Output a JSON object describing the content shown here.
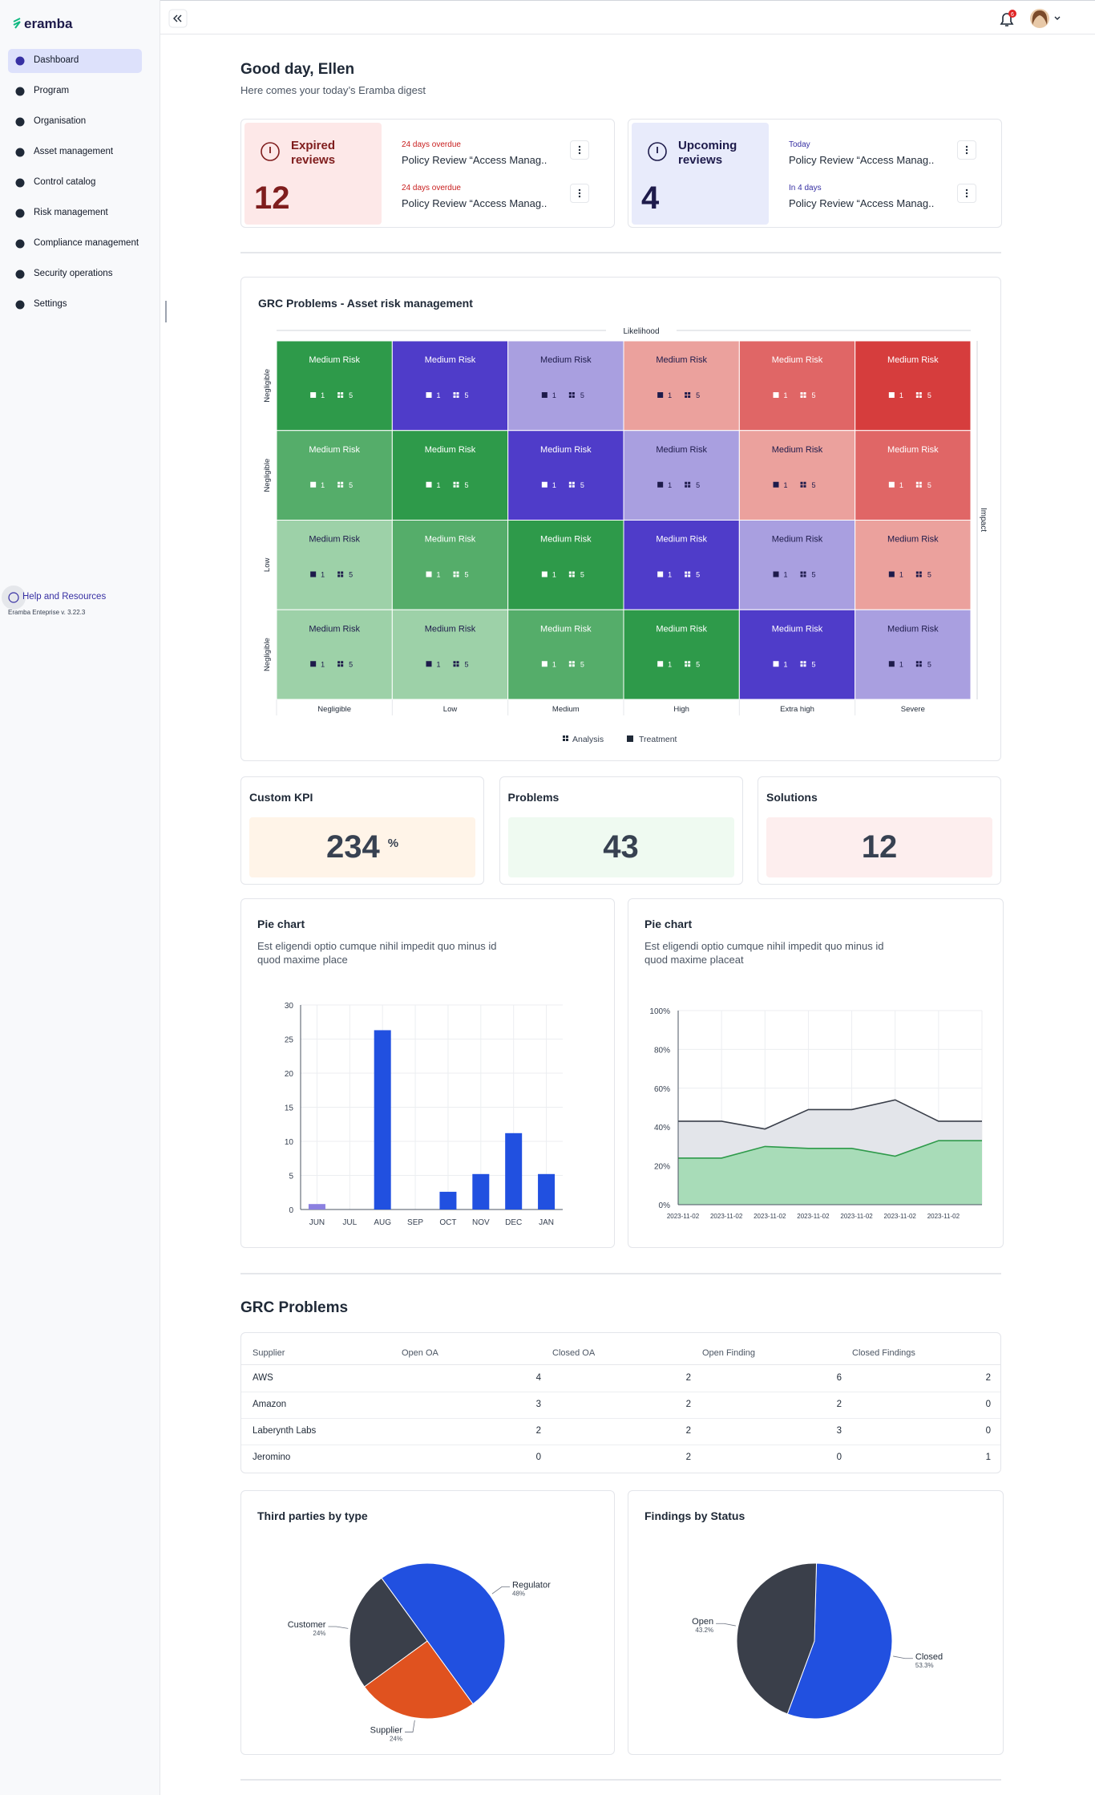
{
  "sidebar": {
    "logo": "eramba",
    "active": 0,
    "menu": [
      "Dashboard",
      "Program",
      "Organisation",
      "Asset management",
      "Control catalog",
      "Risk management",
      "Compliance management",
      "Security operations",
      "Settings"
    ],
    "help": "Help and Resources",
    "version": "Eramba Enteprise v. 3.22.3"
  },
  "topbar": {
    "notifications": "6"
  },
  "greeting": {
    "title": "Good day, Ellen",
    "subtitle": "Here comes your today’s Eramba digest"
  },
  "reviews": [
    {
      "title": "Expired reviews",
      "count": 12,
      "bg": "#fde8e8",
      "fg": "#7f1d1d",
      "status_color": "#c81e1e",
      "items": [
        {
          "status": "24 days overdue",
          "title": "Policy Review “Access Manag.."
        },
        {
          "status": "24 days overdue",
          "title": "Policy Review “Access Manag.."
        }
      ]
    },
    {
      "title": "Upcoming reviews",
      "count": 4,
      "bg": "#e8ebfb",
      "fg": "#1e1b4b",
      "status_color": "#3730a3",
      "items": [
        {
          "status": "Today",
          "title": "Policy Review “Access Manag.."
        },
        {
          "status": "In 4 days",
          "title": "Policy Review “Access Manag.."
        }
      ]
    }
  ],
  "risk_matrix": {
    "title": "GRC Problems - Asset risk management",
    "x_axis": "Likelihood",
    "y_axis": "Impact",
    "columns": [
      "Negligible",
      "Low",
      "Medium",
      "High",
      "Extra high",
      "Severe"
    ],
    "legend": [
      "Analysis",
      "Treatment"
    ],
    "rows": [
      {
        "label": "Negligible",
        "cells": [
          {
            "label": "Medium Risk",
            "color": "#2e9a4a",
            "treatment": 1,
            "analysis": 5
          },
          {
            "label": "Medium Risk",
            "color": "#4f3cc9",
            "treatment": 1,
            "analysis": 5
          },
          {
            "label": "Medium Risk",
            "color": "#a99fe0",
            "treatment": 1,
            "analysis": 5
          },
          {
            "label": "Medium Risk",
            "color": "#eba19d",
            "treatment": 1,
            "analysis": 5
          },
          {
            "label": "Medium Risk",
            "color": "#e06666",
            "treatment": 1,
            "analysis": 5
          },
          {
            "label": "Medium Risk",
            "color": "#d63d3d",
            "treatment": 1,
            "analysis": 5
          }
        ]
      },
      {
        "label": "Negligible",
        "cells": [
          {
            "label": "Medium Risk",
            "color": "#55ad6a",
            "treatment": 1,
            "analysis": 5
          },
          {
            "label": "Medium Risk",
            "color": "#2e9a4a",
            "treatment": 1,
            "analysis": 5
          },
          {
            "label": "Medium Risk",
            "color": "#4f3cc9",
            "treatment": 1,
            "analysis": 5
          },
          {
            "label": "Medium Risk",
            "color": "#a99fe0",
            "treatment": 1,
            "analysis": 5
          },
          {
            "label": "Medium Risk",
            "color": "#eba19d",
            "treatment": 1,
            "analysis": 5
          },
          {
            "label": "Medium Risk",
            "color": "#e06666",
            "treatment": 1,
            "analysis": 5
          }
        ]
      },
      {
        "label": "Low",
        "cells": [
          {
            "label": "Medium Risk",
            "color": "#9dd1a8",
            "treatment": 1,
            "analysis": 5
          },
          {
            "label": "Medium Risk",
            "color": "#55ad6a",
            "treatment": 1,
            "analysis": 5
          },
          {
            "label": "Medium Risk",
            "color": "#2e9a4a",
            "treatment": 1,
            "analysis": 5
          },
          {
            "label": "Medium Risk",
            "color": "#4f3cc9",
            "treatment": 1,
            "analysis": 5
          },
          {
            "label": "Medium Risk",
            "color": "#a99fe0",
            "treatment": 1,
            "analysis": 5
          },
          {
            "label": "Medium Risk",
            "color": "#eba19d",
            "treatment": 1,
            "analysis": 5
          }
        ]
      },
      {
        "label": "Negligible",
        "cells": [
          {
            "label": "Medium Risk",
            "color": "#9dd1a8",
            "treatment": 1,
            "analysis": 5
          },
          {
            "label": "Medium Risk",
            "color": "#9dd1a8",
            "treatment": 1,
            "analysis": 5
          },
          {
            "label": "Medium Risk",
            "color": "#55ad6a",
            "treatment": 1,
            "analysis": 5
          },
          {
            "label": "Medium Risk",
            "color": "#2e9a4a",
            "treatment": 1,
            "analysis": 5
          },
          {
            "label": "Medium Risk",
            "color": "#4f3cc9",
            "treatment": 1,
            "analysis": 5
          },
          {
            "label": "Medium Risk",
            "color": "#a99fe0",
            "treatment": 1,
            "analysis": 5
          }
        ]
      }
    ]
  },
  "kpis": [
    {
      "title": "Custom KPI",
      "value": 234,
      "unit": "%",
      "color": "#fff4e8"
    },
    {
      "title": "Problems",
      "value": 43,
      "color": "#effaf1"
    },
    {
      "title": "Solutions",
      "value": 12,
      "color": "#fdeeee"
    }
  ],
  "chart_data": [
    {
      "type": "bar",
      "title": "Pie chart",
      "subtitle": "Est eligendi optio cumque nihil impedit quo minus id quod maxime place",
      "categories": [
        "JUN",
        "JUL",
        "AUG",
        "SEP",
        "OCT",
        "NOV",
        "DEC",
        "JAN"
      ],
      "values": [
        0.8,
        0,
        26.3,
        0,
        2.6,
        5.2,
        11.2,
        5.2
      ],
      "colors": [
        "#8b80e0",
        "#2150e0",
        "#2150e0",
        "#2150e0",
        "#2150e0",
        "#2150e0",
        "#2150e0",
        "#2150e0"
      ],
      "ylim": [
        0,
        30
      ],
      "yticks": [
        0,
        5,
        10,
        15,
        20,
        25,
        30
      ],
      "grid": true
    },
    {
      "type": "area",
      "title": "Pie chart",
      "subtitle": "Est eligendi optio cumque nihil impedit quo minus id quod maxime placeat",
      "categories": [
        "2023-11-02",
        "2023-11-02",
        "2023-11-02",
        "2023-11-02",
        "2023-11-02",
        "2023-11-02",
        "2023-11-02",
        null
      ],
      "series": [
        {
          "color": "#3a3f4a",
          "fill": "#e3e5ea",
          "values": [
            43,
            43,
            39,
            49,
            49,
            54,
            43,
            43
          ]
        },
        {
          "color": "#2e9a4a",
          "fill": "#a8dcb8",
          "values": [
            24,
            24,
            30,
            29,
            29,
            25,
            33,
            33
          ]
        }
      ],
      "ylim": [
        0,
        100
      ],
      "yticks": [
        {
          "value": 0,
          "label": "0%"
        },
        {
          "value": 20,
          "label": "20%"
        },
        {
          "value": 40,
          "label": "40%"
        },
        {
          "value": 60,
          "label": "60%"
        },
        {
          "value": 80,
          "label": "80%"
        },
        {
          "value": 100,
          "label": "100%"
        }
      ],
      "grid": true
    },
    {
      "type": "pie",
      "title": "Third parties by type",
      "labels": [
        "Regulator",
        "Supplier",
        "Customer"
      ],
      "values": [
        48,
        24,
        24
      ],
      "value_labels": [
        "48%",
        "24%",
        "24%"
      ],
      "colors": [
        "#2150e0",
        "#e0521f",
        "#3a3f4a"
      ]
    },
    {
      "type": "pie",
      "title": "Findings by Status",
      "labels": [
        "Closed",
        "Open"
      ],
      "values": [
        53.3,
        43.2
      ],
      "value_labels": [
        "53.3%",
        "43.2%"
      ],
      "colors": [
        "#2150e0",
        "#3a3f4a"
      ]
    }
  ],
  "table": {
    "title": "GRC Problems",
    "headers": [
      "Supplier",
      "Open OA",
      "Closed OA",
      "Open Finding",
      "Closed Findings"
    ],
    "rows": [
      [
        "AWS",
        4,
        2,
        6,
        2
      ],
      [
        "Amazon",
        3,
        2,
        2,
        0
      ],
      [
        "Laberynth Labs",
        2,
        2,
        3,
        0
      ],
      [
        "Jeromino",
        0,
        2,
        0,
        1
      ]
    ]
  }
}
